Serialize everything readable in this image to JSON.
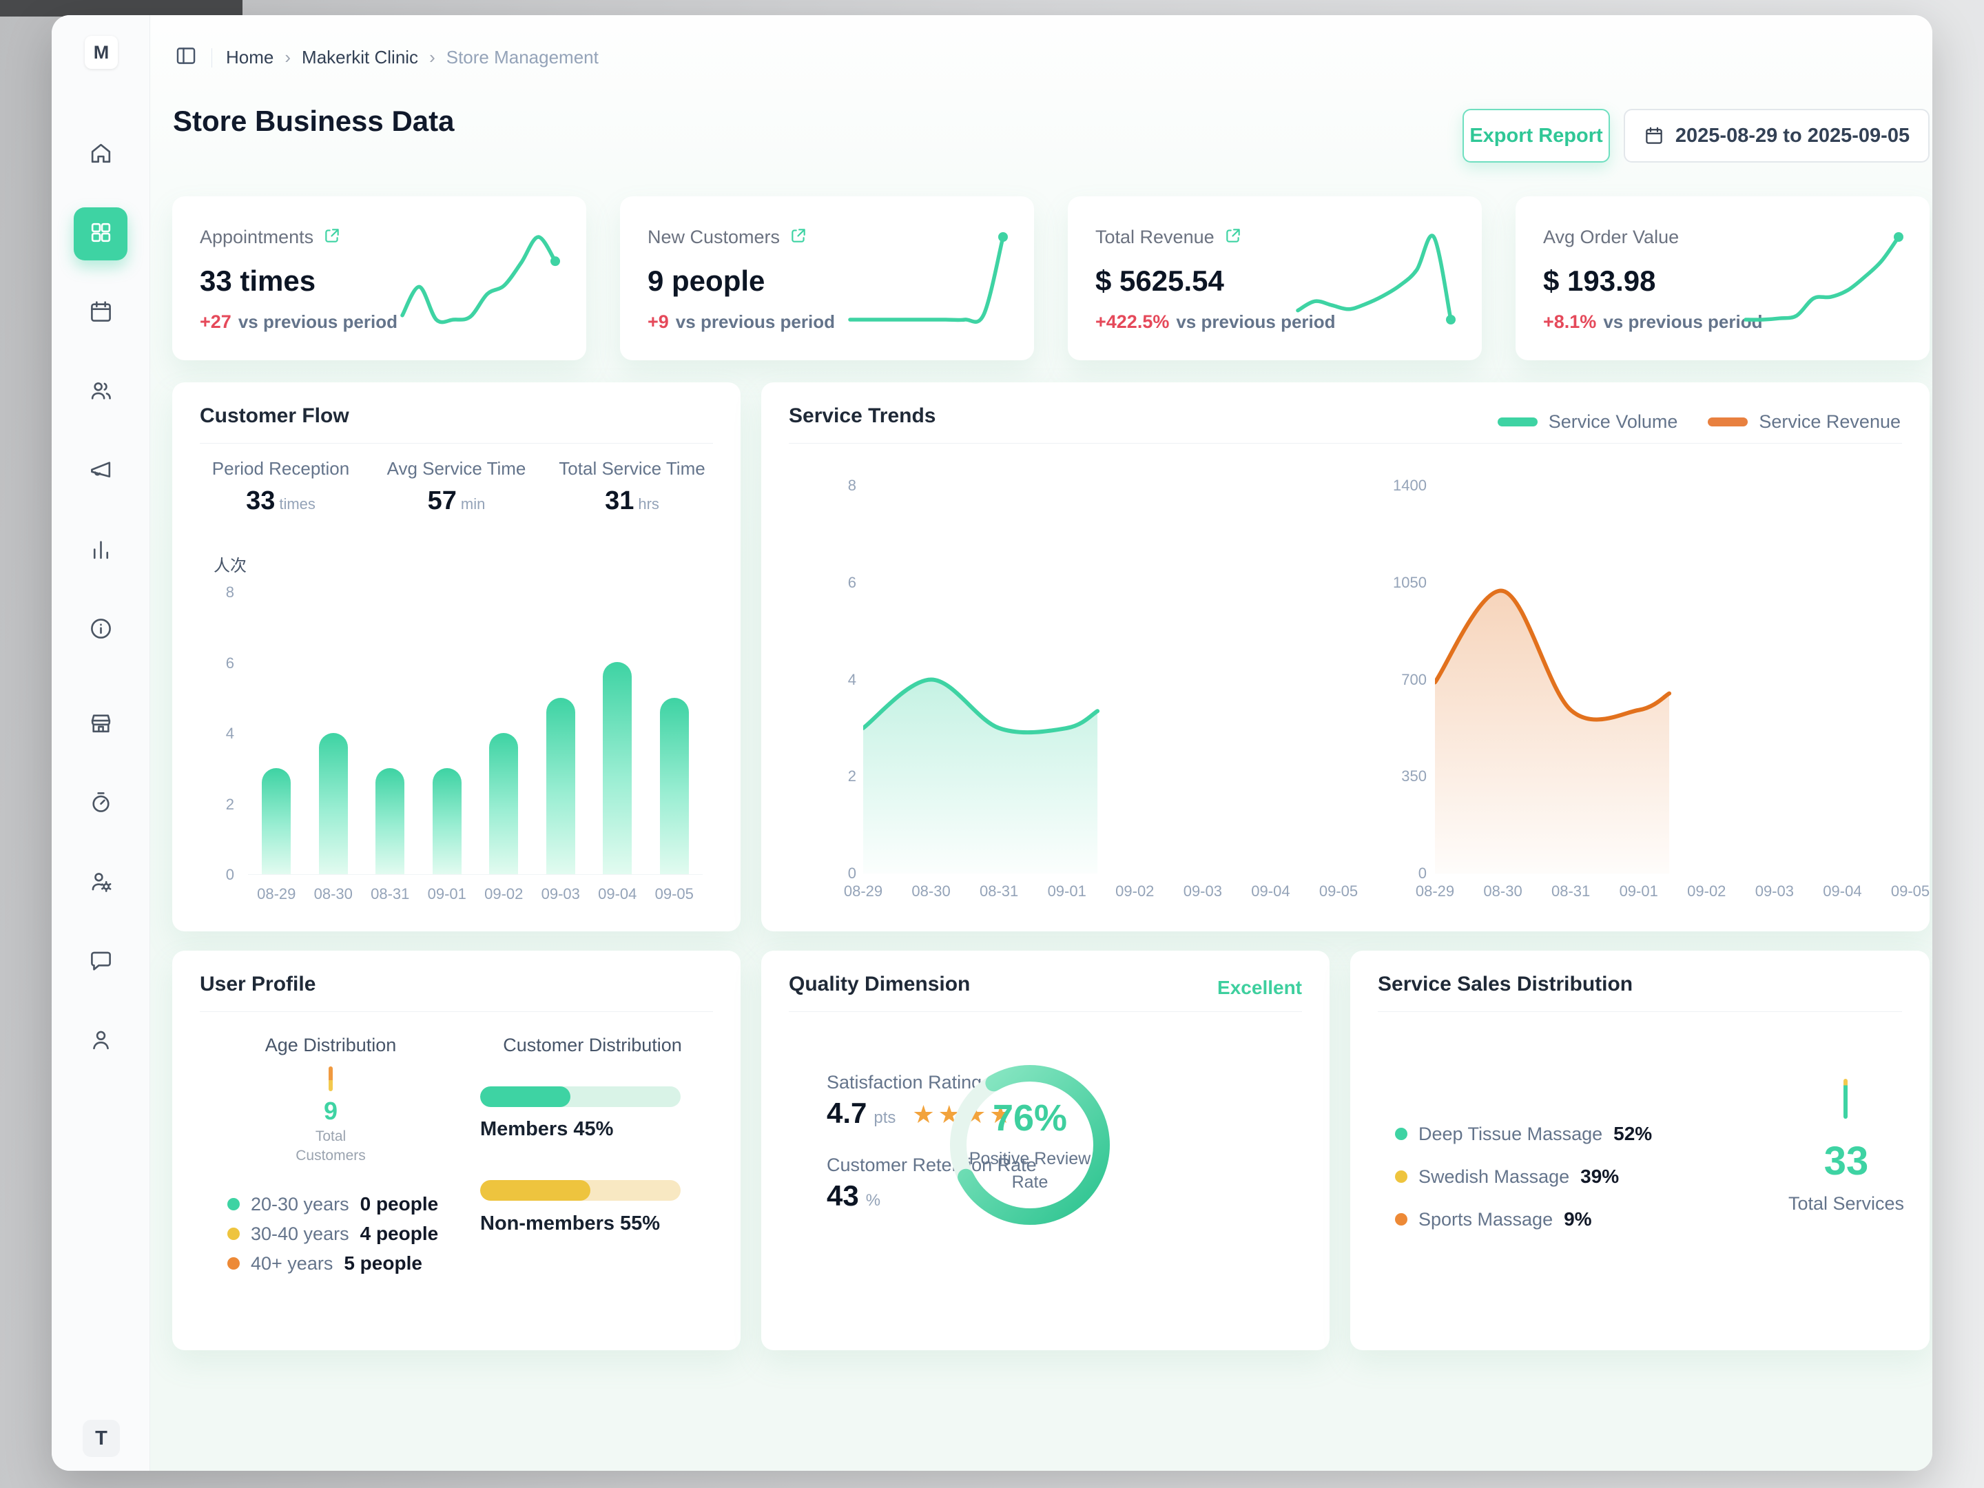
{
  "accent": {
    "teal": "#3ed3a3",
    "orange_line": "#e2711d",
    "orange_pill": "#e8803f",
    "yellow": "#eec43e",
    "orange_dot": "#ed8936",
    "red": "#e5495a"
  },
  "sidebar": {
    "avatar_initial": "M",
    "bottom_initial": "T",
    "items": [
      "home",
      "dashboard-grid",
      "calendar",
      "customers",
      "megaphone",
      "bar-chart",
      "info",
      "store",
      "timer",
      "staff-settings",
      "chat",
      "profile"
    ],
    "active_item": "dashboard-grid"
  },
  "breadcrumb": {
    "items": [
      "Home",
      "Makerkit Clinic",
      "Store Management"
    ],
    "separator": "›"
  },
  "header": {
    "title": "Store Business Data",
    "export_button": "Export Report",
    "date_range": "2025-08-29 to 2025-09-05"
  },
  "kpis": [
    {
      "label": "Appointments",
      "value": "33 times",
      "delta": "+27",
      "delta_text": "vs previous period",
      "spark": [
        2.5,
        4.5,
        2.2,
        2.2,
        2.4,
        4.0,
        4.6,
        6.2,
        8.0,
        6.3
      ]
    },
    {
      "label": "New Customers",
      "value": "9 people",
      "delta": "+9",
      "delta_text": "vs previous period",
      "spark": [
        0.4,
        0.4,
        0.4,
        0.4,
        0.4,
        0.4,
        0.4,
        0.9,
        8.0
      ]
    },
    {
      "label": "Total Revenue",
      "value": "$ 5625.54",
      "delta": "+422.5%",
      "delta_text": "vs previous period",
      "spark": [
        2.2,
        2.9,
        2.6,
        2.3,
        2.7,
        3.3,
        4.1,
        5.3,
        7.8,
        1.5
      ]
    },
    {
      "label": "Avg Order Value",
      "value": "$ 193.98",
      "delta": "+8.1%",
      "delta_text": "vs previous period",
      "spark": [
        1.2,
        1.2,
        1.3,
        1.5,
        2.8,
        2.9,
        3.4,
        4.4,
        5.6,
        7.4
      ]
    }
  ],
  "customer_flow": {
    "title": "Customer Flow",
    "stats": [
      {
        "label": "Period Reception",
        "value": "33",
        "unit": "times"
      },
      {
        "label": "Avg Service Time",
        "value": "57",
        "unit": "min"
      },
      {
        "label": "Total Service Time",
        "value": "31",
        "unit": "hrs"
      }
    ],
    "y_axis_title": "人次",
    "chart": {
      "type": "bar",
      "categories": [
        "08-29",
        "08-30",
        "08-31",
        "09-01",
        "09-02",
        "09-03",
        "09-04",
        "09-05"
      ],
      "values": [
        3,
        4,
        3,
        3,
        4,
        5,
        6,
        5
      ],
      "yticks": [
        8,
        6,
        4,
        2,
        0
      ],
      "ymax": 8
    }
  },
  "service_trends": {
    "title": "Service Trends",
    "legend": [
      {
        "label": "Service Volume",
        "color": "#3ed3a3"
      },
      {
        "label": "Service Revenue",
        "color": "#e8803f"
      }
    ],
    "volume_chart": {
      "type": "area",
      "categories": [
        "08-29",
        "08-30",
        "08-31",
        "09-01",
        "09-02",
        "09-03",
        "09-04",
        "09-05"
      ],
      "x": [
        0,
        1,
        2,
        3,
        3.45
      ],
      "values": [
        3,
        4,
        3,
        3,
        3.35
      ],
      "yticks": [
        8,
        6,
        4,
        2,
        0
      ],
      "ymax": 8,
      "color": "#3ed3a3"
    },
    "revenue_chart": {
      "type": "area",
      "categories": [
        "08-29",
        "08-30",
        "08-31",
        "09-01",
        "09-02",
        "09-03",
        "09-04",
        "09-05"
      ],
      "x": [
        0,
        1,
        2,
        3,
        3.45
      ],
      "values": [
        690,
        1020,
        590,
        590,
        650
      ],
      "yticks": [
        1400,
        1050,
        700,
        350,
        0
      ],
      "ymax": 1400,
      "color": "#e2711d"
    }
  },
  "user_profile": {
    "title": "User Profile",
    "age": {
      "subtitle": "Age Distribution",
      "total_value": "9",
      "total_label": [
        "Total",
        "Customers"
      ],
      "legend": [
        {
          "label": "20-30 years",
          "value": "0 people",
          "color": "#3ed3a3"
        },
        {
          "label": "30-40 years",
          "value": "4 people",
          "color": "#eec43e"
        },
        {
          "label": "40+ years",
          "value": "5 people",
          "color": "#ed8936"
        }
      ]
    },
    "distribution": {
      "subtitle": "Customer Distribution",
      "bars": [
        {
          "label": "Members 45%",
          "pct": 45,
          "color": "#3ed3a3",
          "track": "#d9f3e7"
        },
        {
          "label": "Non-members 55%",
          "pct": 55,
          "color": "#eec43e",
          "track": "#f8e8c2"
        }
      ]
    }
  },
  "quality": {
    "title": "Quality Dimension",
    "badge": "Excellent",
    "satisfaction": {
      "label": "Satisfaction Rating",
      "value": "4.7",
      "unit": "pts",
      "stars": 4
    },
    "retention": {
      "label": "Customer Retention Rate",
      "value": "43",
      "unit": "%"
    },
    "donut": {
      "pct": 76,
      "value_text": "76%",
      "label": [
        "Positive Review",
        "Rate"
      ]
    }
  },
  "service_sales": {
    "title": "Service Sales Distribution",
    "legend": [
      {
        "label": "Deep Tissue Massage",
        "value": "52%",
        "color": "#3ed3a3"
      },
      {
        "label": "Swedish Massage",
        "value": "39%",
        "color": "#eec43e"
      },
      {
        "label": "Sports Massage",
        "value": "9%",
        "color": "#ed8936"
      }
    ],
    "total_value": "33",
    "total_label": "Total Services"
  }
}
